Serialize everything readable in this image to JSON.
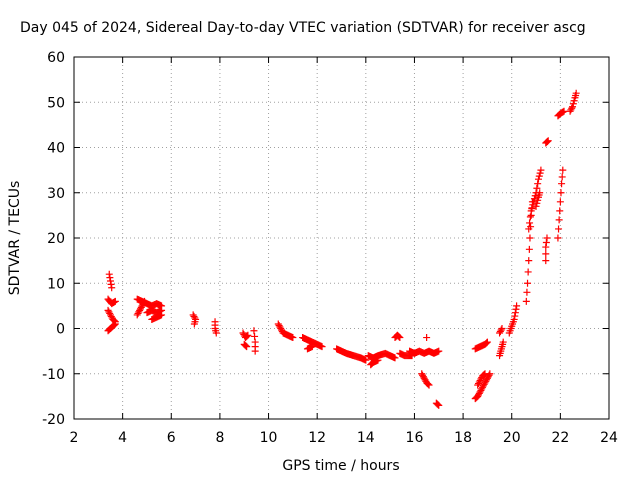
{
  "chart_data": {
    "type": "scatter",
    "title": "Day 045 of 2024, Sidereal Day-to-day VTEC variation (SDTVAR) for receiver ascg",
    "xlabel": "GPS time / hours",
    "ylabel": "SDTVAR / TECUs",
    "xlim": [
      2,
      24
    ],
    "ylim": [
      -20,
      60
    ],
    "xticks": [
      2,
      4,
      6,
      8,
      10,
      12,
      14,
      16,
      18,
      20,
      22,
      24
    ],
    "yticks": [
      -20,
      -10,
      0,
      10,
      20,
      30,
      40,
      50,
      60
    ],
    "grid": true,
    "marker": "+",
    "series_color": "#ff0000",
    "series": [
      {
        "name": "SDTVAR",
        "segments": [
          [
            [
              3.45,
              12.0
            ],
            [
              3.5,
              10.5
            ],
            [
              3.55,
              9.0
            ]
          ],
          [
            [
              3.4,
              6.5
            ],
            [
              3.55,
              5.5
            ],
            [
              3.7,
              6.0
            ]
          ],
          [
            [
              3.4,
              4.0
            ],
            [
              3.5,
              3.0
            ],
            [
              3.6,
              2.0
            ],
            [
              3.7,
              1.5
            ]
          ],
          [
            [
              3.4,
              -0.5
            ],
            [
              3.5,
              0.0
            ],
            [
              3.6,
              0.5
            ],
            [
              3.7,
              1.0
            ]
          ],
          [
            [
              4.6,
              3.0
            ],
            [
              4.7,
              4.0
            ],
            [
              4.8,
              5.0
            ],
            [
              4.9,
              6.0
            ]
          ],
          [
            [
              4.6,
              6.5
            ],
            [
              4.8,
              6.0
            ],
            [
              5.0,
              5.5
            ],
            [
              5.2,
              5.0
            ],
            [
              5.4,
              5.5
            ],
            [
              5.6,
              5.0
            ]
          ],
          [
            [
              5.0,
              3.5
            ],
            [
              5.2,
              4.0
            ],
            [
              5.4,
              3.5
            ],
            [
              5.6,
              4.0
            ]
          ],
          [
            [
              5.2,
              2.0
            ],
            [
              5.4,
              2.5
            ],
            [
              5.6,
              3.0
            ]
          ],
          [
            [
              6.9,
              3.0
            ],
            [
              7.0,
              2.0
            ],
            [
              6.95,
              1.0
            ]
          ],
          [
            [
              7.8,
              1.5
            ],
            [
              7.8,
              0.0
            ],
            [
              7.85,
              -1.0
            ]
          ],
          [
            [
              8.95,
              -1.0
            ],
            [
              9.05,
              -2.0
            ],
            [
              9.15,
              -1.5
            ]
          ],
          [
            [
              9.0,
              -3.5
            ],
            [
              9.1,
              -4.0
            ]
          ],
          [
            [
              9.4,
              -0.5
            ],
            [
              9.45,
              -3.0
            ],
            [
              9.45,
              -5.0
            ]
          ],
          [
            [
              10.4,
              1.0
            ],
            [
              10.5,
              0.0
            ],
            [
              10.6,
              -1.0
            ],
            [
              10.8,
              -1.5
            ],
            [
              11.0,
              -2.0
            ]
          ],
          [
            [
              11.4,
              -2.0
            ],
            [
              11.6,
              -2.5
            ],
            [
              11.8,
              -3.0
            ],
            [
              12.0,
              -3.5
            ],
            [
              12.2,
              -4.0
            ]
          ],
          [
            [
              11.6,
              -4.5
            ],
            [
              11.8,
              -4.0
            ]
          ],
          [
            [
              12.8,
              -4.5
            ],
            [
              13.0,
              -5.0
            ],
            [
              13.2,
              -5.5
            ],
            [
              13.5,
              -6.0
            ],
            [
              13.8,
              -6.5
            ],
            [
              14.0,
              -7.0
            ]
          ],
          [
            [
              14.1,
              -6.0
            ],
            [
              14.3,
              -6.5
            ],
            [
              14.5,
              -6.0
            ],
            [
              14.8,
              -5.5
            ],
            [
              15.0,
              -6.0
            ],
            [
              15.2,
              -6.5
            ]
          ],
          [
            [
              14.2,
              -8.0
            ],
            [
              14.3,
              -7.5
            ],
            [
              14.5,
              -7.0
            ]
          ],
          [
            [
              15.2,
              -2.0
            ],
            [
              15.3,
              -1.5
            ],
            [
              15.4,
              -2.0
            ]
          ],
          [
            [
              15.4,
              -5.5
            ],
            [
              15.6,
              -6.0
            ],
            [
              15.9,
              -6.0
            ]
          ],
          [
            [
              15.8,
              -5.0
            ],
            [
              16.0,
              -5.5
            ],
            [
              16.2,
              -5.0
            ],
            [
              16.4,
              -5.5
            ],
            [
              16.6,
              -5.0
            ],
            [
              16.8,
              -5.5
            ],
            [
              17.0,
              -5.0
            ]
          ],
          [
            [
              16.5,
              -2.0
            ]
          ],
          [
            [
              16.3,
              -10.0
            ],
            [
              16.4,
              -11.0
            ],
            [
              16.5,
              -12.0
            ],
            [
              16.6,
              -12.5
            ]
          ],
          [
            [
              16.9,
              -16.5
            ],
            [
              17.0,
              -17.0
            ]
          ],
          [
            [
              18.5,
              -4.5
            ],
            [
              18.7,
              -4.0
            ],
            [
              18.9,
              -3.5
            ],
            [
              19.0,
              -3.0
            ]
          ],
          [
            [
              18.5,
              -15.5
            ],
            [
              18.6,
              -15.0
            ],
            [
              18.7,
              -14.0
            ],
            [
              18.8,
              -13.0
            ],
            [
              18.9,
              -12.0
            ],
            [
              19.0,
              -11.0
            ],
            [
              19.1,
              -10.0
            ]
          ],
          [
            [
              18.6,
              -12.5
            ],
            [
              18.7,
              -11.5
            ],
            [
              18.8,
              -10.5
            ],
            [
              18.9,
              -10.0
            ]
          ],
          [
            [
              19.5,
              -6.0
            ],
            [
              19.55,
              -5.0
            ],
            [
              19.6,
              -4.0
            ],
            [
              19.65,
              -3.0
            ]
          ],
          [
            [
              19.5,
              -1.0
            ],
            [
              19.6,
              0.0
            ]
          ],
          [
            [
              19.9,
              -1.0
            ],
            [
              20.0,
              0.5
            ],
            [
              20.1,
              2.0
            ],
            [
              20.15,
              3.5
            ],
            [
              20.2,
              5.0
            ]
          ],
          [
            [
              20.6,
              6.0
            ],
            [
              20.65,
              10.0
            ],
            [
              20.7,
              15.0
            ],
            [
              20.75,
              20.0
            ],
            [
              20.8,
              25.0
            ],
            [
              20.85,
              28.0
            ]
          ],
          [
            [
              20.7,
              22.0
            ],
            [
              20.8,
              26.0
            ],
            [
              20.9,
              28.0
            ],
            [
              21.0,
              30.0
            ],
            [
              21.1,
              33.0
            ],
            [
              21.2,
              35.0
            ]
          ],
          [
            [
              21.0,
              27.0
            ],
            [
              21.1,
              29.0
            ],
            [
              21.15,
              30.0
            ]
          ],
          [
            [
              21.4,
              15.0
            ],
            [
              21.4,
              18.0
            ],
            [
              21.45,
              20.0
            ]
          ],
          [
            [
              21.4,
              41.0
            ],
            [
              21.5,
              41.5
            ]
          ],
          [
            [
              21.9,
              20.0
            ],
            [
              21.95,
              24.0
            ],
            [
              22.0,
              28.0
            ],
            [
              22.05,
              32.0
            ],
            [
              22.1,
              35.0
            ]
          ],
          [
            [
              21.9,
              47.0
            ],
            [
              22.0,
              47.5
            ],
            [
              22.15,
              48.0
            ]
          ],
          [
            [
              22.4,
              48.0
            ],
            [
              22.5,
              49.0
            ],
            [
              22.6,
              51.0
            ],
            [
              22.65,
              52.0
            ]
          ]
        ]
      }
    ]
  }
}
